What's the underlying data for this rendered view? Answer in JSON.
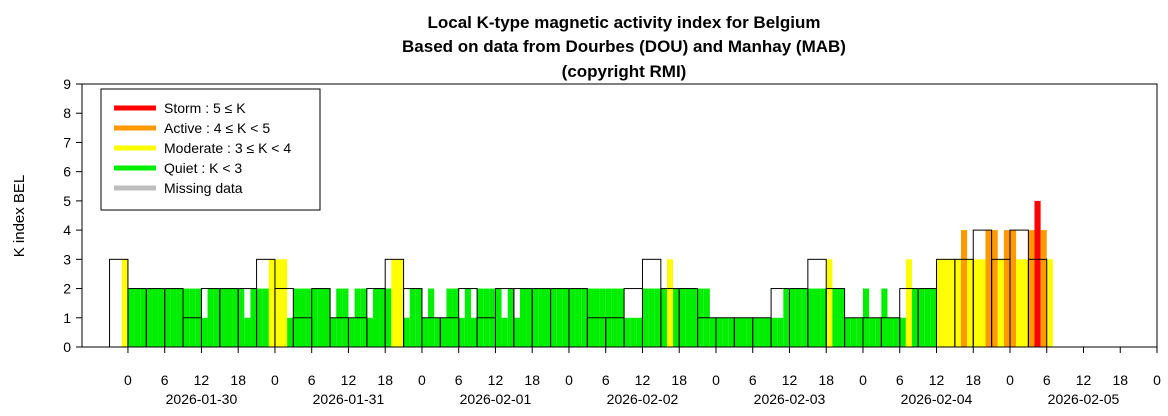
{
  "chart_data": {
    "type": "bar",
    "title_lines": [
      "Local K-type magnetic activity index for Belgium",
      "Based on data from Dourbes (DOU) and Manhay (MAB)",
      "(copyright RMI)"
    ],
    "ylabel": "K index BEL",
    "xlabel": "",
    "ylim": [
      0,
      9
    ],
    "yticks": [
      "0",
      "1",
      "2",
      "3",
      "4",
      "5",
      "6",
      "7",
      "8",
      "9"
    ],
    "x_unit": "hours since 2026-01-30 00:00",
    "xticks": [
      {
        "hour": 0,
        "label": "0"
      },
      {
        "hour": 6,
        "label": "6"
      },
      {
        "hour": 12,
        "label": "12"
      },
      {
        "hour": 18,
        "label": "18"
      },
      {
        "hour": 24,
        "label": "0"
      },
      {
        "hour": 30,
        "label": "6"
      },
      {
        "hour": 36,
        "label": "12"
      },
      {
        "hour": 42,
        "label": "18"
      },
      {
        "hour": 48,
        "label": "0"
      },
      {
        "hour": 54,
        "label": "6"
      },
      {
        "hour": 60,
        "label": "12"
      },
      {
        "hour": 66,
        "label": "18"
      },
      {
        "hour": 72,
        "label": "0"
      },
      {
        "hour": 78,
        "label": "6"
      },
      {
        "hour": 84,
        "label": "12"
      },
      {
        "hour": 90,
        "label": "18"
      },
      {
        "hour": 96,
        "label": "0"
      },
      {
        "hour": 102,
        "label": "6"
      },
      {
        "hour": 108,
        "label": "12"
      },
      {
        "hour": 114,
        "label": "18"
      },
      {
        "hour": 120,
        "label": "0"
      },
      {
        "hour": 126,
        "label": "6"
      },
      {
        "hour": 132,
        "label": "12"
      },
      {
        "hour": 138,
        "label": "18"
      },
      {
        "hour": 144,
        "label": "0"
      },
      {
        "hour": 150,
        "label": "6"
      },
      {
        "hour": 156,
        "label": "12"
      },
      {
        "hour": 162,
        "label": "18"
      },
      {
        "hour": 168,
        "label": "0"
      }
    ],
    "date_labels": [
      {
        "hour": 12,
        "label": "2026-01-30"
      },
      {
        "hour": 36,
        "label": "2026-01-31"
      },
      {
        "hour": 60,
        "label": "2026-02-01"
      },
      {
        "hour": 84,
        "label": "2026-02-02"
      },
      {
        "hour": 108,
        "label": "2026-02-03"
      },
      {
        "hour": 132,
        "label": "2026-02-04"
      },
      {
        "hour": 156,
        "label": "2026-02-05"
      }
    ],
    "xlim_hours": [
      -7.5,
      168
    ],
    "legend": {
      "placement": "top-left",
      "entries": [
        {
          "label": "Storm : 5 ≤ K",
          "color": "#ff0000"
        },
        {
          "label": "Active : 4 ≤ K < 5",
          "color": "#ff9900"
        },
        {
          "label": "Moderate : 3 ≤ K < 4",
          "color": "#ffff00"
        },
        {
          "label": "Quiet : K < 3",
          "color": "#00ee00"
        },
        {
          "label": "Missing data",
          "color": "#bebebe"
        }
      ]
    },
    "colors": {
      "storm": "#ff0000",
      "active": "#ff9900",
      "moderate": "#ffff00",
      "quiet": "#00ee00",
      "missing": "#bebebe",
      "outline": "#000000"
    },
    "k3h_outline": {
      "bin_hours": 3,
      "start_hour": -3,
      "values": [
        3,
        2,
        2,
        2,
        1,
        2,
        2,
        2,
        3,
        2,
        1,
        2,
        1,
        1,
        2,
        3,
        2,
        1,
        1,
        2,
        1,
        2,
        2,
        2,
        2,
        2,
        1,
        1,
        2,
        3,
        2,
        2,
        1,
        1,
        1,
        1,
        2,
        2,
        3,
        2,
        1,
        1,
        1,
        2,
        2,
        3,
        3,
        4,
        3,
        4,
        3
      ]
    },
    "k1m_colored": {
      "bin_hours": 1,
      "start_hour": -1,
      "values": [
        3,
        2,
        2,
        2,
        2,
        2,
        2,
        2,
        2,
        2,
        2,
        2,
        2,
        1,
        2,
        2,
        2,
        2,
        2,
        2,
        1,
        2,
        2,
        2,
        3,
        3,
        3,
        1,
        2,
        2,
        2,
        2,
        2,
        2,
        1,
        2,
        2,
        1,
        2,
        2,
        1,
        2,
        2,
        2,
        3,
        3,
        1,
        2,
        2,
        1,
        2,
        1,
        1,
        2,
        2,
        1,
        2,
        1,
        2,
        2,
        2,
        2,
        1,
        2,
        1,
        2,
        2,
        2,
        2,
        2,
        2,
        2,
        2,
        2,
        2,
        2,
        2,
        2,
        2,
        2,
        2,
        2,
        1,
        1,
        1,
        2,
        2,
        2,
        2,
        3,
        2,
        2,
        2,
        2,
        2,
        2,
        1,
        1,
        1,
        1,
        1,
        1,
        1,
        1,
        1,
        1,
        1,
        1,
        2,
        2,
        2,
        2,
        2,
        2,
        2,
        3,
        2,
        2,
        1,
        1,
        1,
        2,
        1,
        1,
        2,
        1,
        1,
        1,
        3,
        2,
        2,
        2,
        2,
        3,
        3,
        3,
        3,
        4,
        3,
        3,
        3,
        4,
        4,
        3,
        4,
        4,
        3,
        3,
        4,
        5,
        4,
        3
      ]
    }
  }
}
